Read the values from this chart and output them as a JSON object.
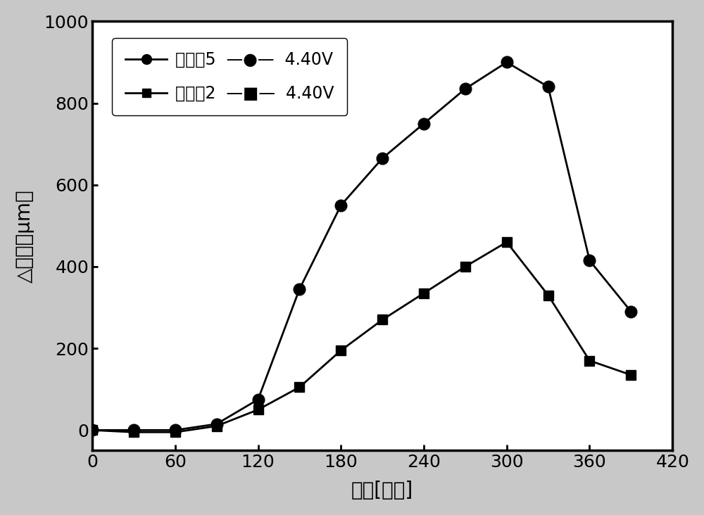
{
  "series1_label_name": "比较例5",
  "series1_label_volt": "4.40V",
  "series2_label_name": "实施例2",
  "series2_label_volt": "4.40V",
  "series1_x": [
    0,
    30,
    60,
    90,
    120,
    150,
    180,
    210,
    240,
    270,
    300,
    330,
    360,
    390
  ],
  "series1_y": [
    0,
    0,
    0,
    15,
    75,
    345,
    550,
    665,
    750,
    835,
    900,
    840,
    415,
    290
  ],
  "series2_x": [
    0,
    30,
    60,
    90,
    120,
    150,
    180,
    210,
    240,
    270,
    300,
    330,
    360,
    390
  ],
  "series2_y": [
    0,
    -5,
    -5,
    10,
    50,
    105,
    195,
    270,
    335,
    400,
    460,
    330,
    170,
    135
  ],
  "xlabel": "时间[分钟]",
  "ylabel": "△厚度［μm］",
  "xlim": [
    0,
    420
  ],
  "ylim": [
    -50,
    1000
  ],
  "xticks": [
    0,
    60,
    120,
    180,
    240,
    300,
    360,
    420
  ],
  "yticks": [
    0,
    200,
    400,
    600,
    800,
    1000
  ],
  "fig_bg_color": "#c8c8c8",
  "plot_bg_color": "#ffffff",
  "line_color": "#000000",
  "marker_size_circle": 12,
  "marker_size_square": 10,
  "line_width": 2.0
}
